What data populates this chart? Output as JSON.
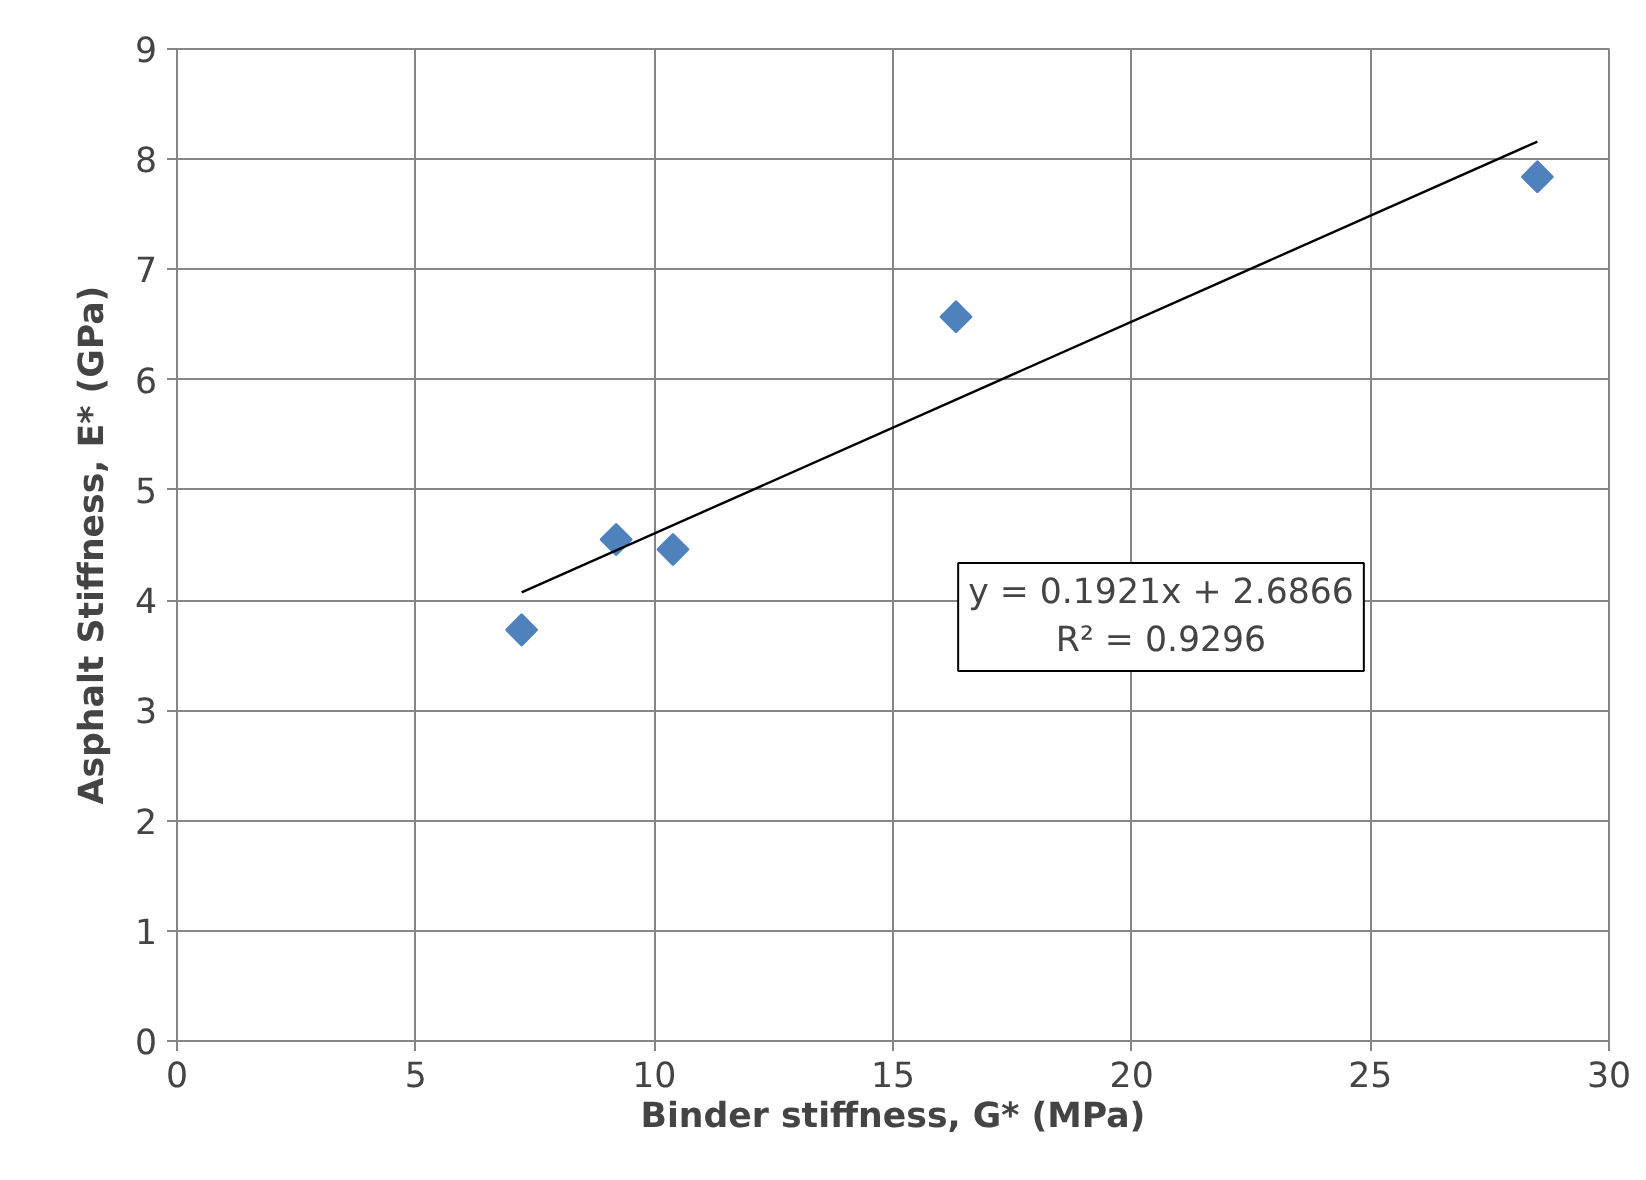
{
  "chart_data": {
    "type": "scatter",
    "xlabel": "Binder stiffness, G* (MPa)",
    "ylabel": "Asphalt Stiffness, E* (GPa)",
    "x": [
      7.22,
      9.2,
      10.39,
      16.32,
      28.5
    ],
    "series": [
      {
        "color": "#4f81bd",
        "marker": "diamond",
        "values": [
          3.73,
          4.55,
          4.46,
          6.57,
          7.84
        ]
      },
      {
        "type": "line",
        "color": "#000000",
        "x": [
          7.22,
          28.5
        ],
        "values": [
          4.07,
          8.16
        ]
      }
    ],
    "xlim": [
      0,
      30
    ],
    "ylim": [
      0,
      9
    ],
    "xticks": [
      0,
      5,
      10,
      15,
      20,
      25,
      30
    ],
    "yticks": [
      0,
      1,
      2,
      3,
      4,
      5,
      6,
      7,
      8,
      9
    ],
    "grid": true,
    "annotations": [
      "y = 0.1921x + 2.6866\nR² = 0.9296"
    ]
  }
}
